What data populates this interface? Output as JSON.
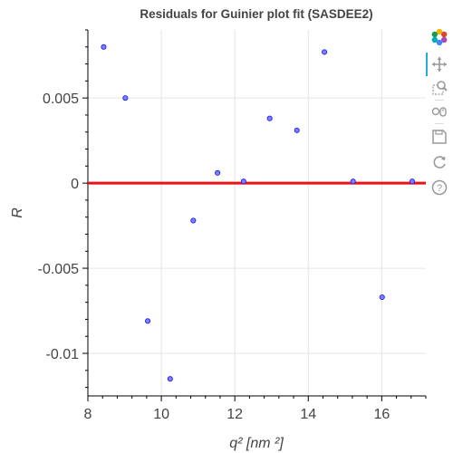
{
  "chart_data": {
    "type": "scatter",
    "title": "Residuals for Guinier plot fit (SASDEE2)",
    "xlabel": "q² [nm ²]",
    "ylabel": "R",
    "xlim": [
      8.0,
      17.2
    ],
    "ylim": [
      -0.0125,
      0.009
    ],
    "x_ticks": [
      8,
      10,
      12,
      14,
      16
    ],
    "x_tick_labels": [
      "8",
      "10",
      "12",
      "14",
      "16"
    ],
    "y_ticks": [
      -0.01,
      -0.005,
      0,
      0.005
    ],
    "y_tick_labels": [
      "-0.01",
      "-0.005",
      "0",
      "0.005"
    ],
    "grid": true,
    "reference_line": {
      "y": 0,
      "color": "#ee1111"
    },
    "marker": {
      "fill": "#8080ff",
      "stroke": "#1f1fff"
    },
    "series": [
      {
        "x": [
          8.43,
          9.02,
          9.63,
          10.24,
          10.87,
          11.53,
          12.24,
          12.95,
          13.69,
          14.44,
          15.22,
          16.01,
          16.83
        ],
        "y": [
          0.008,
          0.005,
          -0.0081,
          -0.0115,
          -0.0022,
          0.0006,
          0.0001,
          0.0038,
          0.0031,
          0.0077,
          0.0001,
          -0.0067,
          0.0001
        ]
      }
    ]
  },
  "toolbar": {
    "tools": [
      {
        "name": "bokeh-logo-icon",
        "active": false
      },
      {
        "name": "pan-icon",
        "active": true
      },
      {
        "name": "box-zoom-icon",
        "active": false
      },
      {
        "name": "wheel-zoom-icon",
        "active": false
      },
      {
        "name": "save-icon",
        "active": false
      },
      {
        "name": "reset-icon",
        "active": false
      },
      {
        "name": "help-icon",
        "active": false
      }
    ]
  }
}
